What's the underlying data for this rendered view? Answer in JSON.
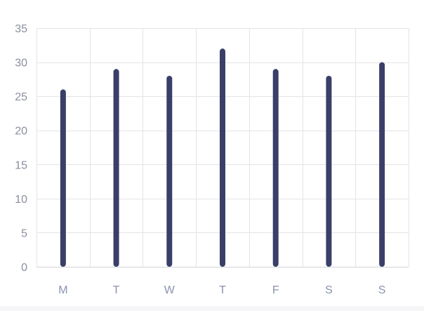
{
  "chart_data": {
    "type": "bar",
    "categories": [
      "M",
      "T",
      "W",
      "T",
      "F",
      "S",
      "S"
    ],
    "values": [
      26,
      29,
      28,
      32,
      29,
      28,
      30
    ],
    "ylim": [
      0,
      35
    ],
    "yticks": [
      0,
      5,
      10,
      15,
      20,
      25,
      30,
      35
    ],
    "grid": true,
    "legend": "none",
    "colors": {
      "bar": "#3a3f68",
      "grid": "#e4e4e8",
      "axis": "#d4d4da",
      "y_tick_text": "#8a8f9e",
      "x_tick_text": "#8a93ad"
    }
  }
}
